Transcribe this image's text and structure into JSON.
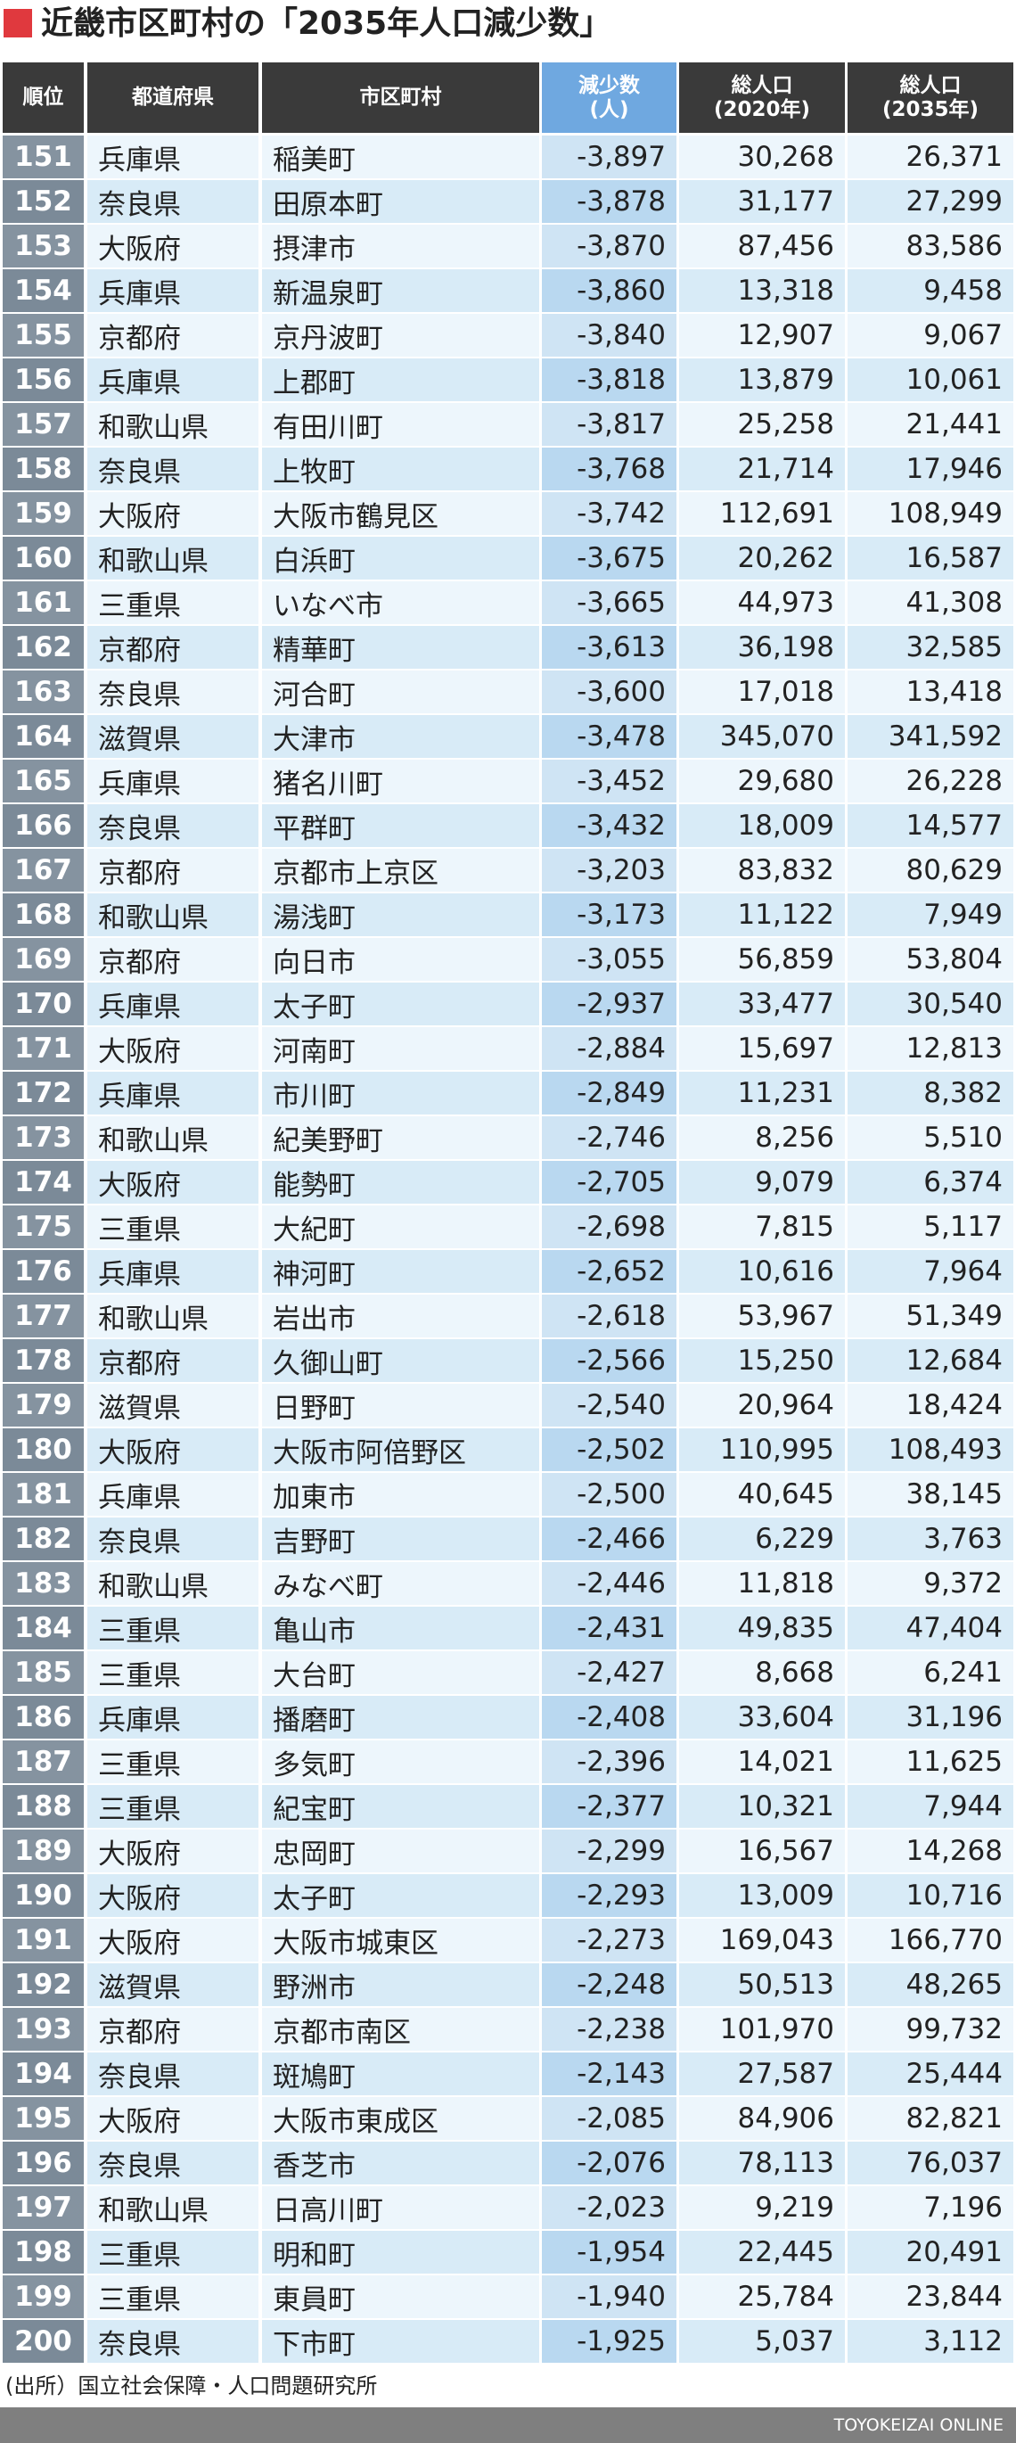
{
  "header": {
    "title": "近畿市区町村の「2035年人口減少数」"
  },
  "table": {
    "columns": [
      [
        "順位"
      ],
      [
        "都道府県"
      ],
      [
        "市区町村"
      ],
      [
        "減少数",
        "(人)"
      ],
      [
        "総人口",
        "(2020年)"
      ],
      [
        "総人口",
        "(2035年)"
      ]
    ],
    "rows": [
      [
        151,
        "兵庫県",
        "稲美町",
        "-3,897",
        "30,268",
        "26,371"
      ],
      [
        152,
        "奈良県",
        "田原本町",
        "-3,878",
        "31,177",
        "27,299"
      ],
      [
        153,
        "大阪府",
        "摂津市",
        "-3,870",
        "87,456",
        "83,586"
      ],
      [
        154,
        "兵庫県",
        "新温泉町",
        "-3,860",
        "13,318",
        "9,458"
      ],
      [
        155,
        "京都府",
        "京丹波町",
        "-3,840",
        "12,907",
        "9,067"
      ],
      [
        156,
        "兵庫県",
        "上郡町",
        "-3,818",
        "13,879",
        "10,061"
      ],
      [
        157,
        "和歌山県",
        "有田川町",
        "-3,817",
        "25,258",
        "21,441"
      ],
      [
        158,
        "奈良県",
        "上牧町",
        "-3,768",
        "21,714",
        "17,946"
      ],
      [
        159,
        "大阪府",
        "大阪市鶴見区",
        "-3,742",
        "112,691",
        "108,949"
      ],
      [
        160,
        "和歌山県",
        "白浜町",
        "-3,675",
        "20,262",
        "16,587"
      ],
      [
        161,
        "三重県",
        "いなべ市",
        "-3,665",
        "44,973",
        "41,308"
      ],
      [
        162,
        "京都府",
        "精華町",
        "-3,613",
        "36,198",
        "32,585"
      ],
      [
        163,
        "奈良県",
        "河合町",
        "-3,600",
        "17,018",
        "13,418"
      ],
      [
        164,
        "滋賀県",
        "大津市",
        "-3,478",
        "345,070",
        "341,592"
      ],
      [
        165,
        "兵庫県",
        "猪名川町",
        "-3,452",
        "29,680",
        "26,228"
      ],
      [
        166,
        "奈良県",
        "平群町",
        "-3,432",
        "18,009",
        "14,577"
      ],
      [
        167,
        "京都府",
        "京都市上京区",
        "-3,203",
        "83,832",
        "80,629"
      ],
      [
        168,
        "和歌山県",
        "湯浅町",
        "-3,173",
        "11,122",
        "7,949"
      ],
      [
        169,
        "京都府",
        "向日市",
        "-3,055",
        "56,859",
        "53,804"
      ],
      [
        170,
        "兵庫県",
        "太子町",
        "-2,937",
        "33,477",
        "30,540"
      ],
      [
        171,
        "大阪府",
        "河南町",
        "-2,884",
        "15,697",
        "12,813"
      ],
      [
        172,
        "兵庫県",
        "市川町",
        "-2,849",
        "11,231",
        "8,382"
      ],
      [
        173,
        "和歌山県",
        "紀美野町",
        "-2,746",
        "8,256",
        "5,510"
      ],
      [
        174,
        "大阪府",
        "能勢町",
        "-2,705",
        "9,079",
        "6,374"
      ],
      [
        175,
        "三重県",
        "大紀町",
        "-2,698",
        "7,815",
        "5,117"
      ],
      [
        176,
        "兵庫県",
        "神河町",
        "-2,652",
        "10,616",
        "7,964"
      ],
      [
        177,
        "和歌山県",
        "岩出市",
        "-2,618",
        "53,967",
        "51,349"
      ],
      [
        178,
        "京都府",
        "久御山町",
        "-2,566",
        "15,250",
        "12,684"
      ],
      [
        179,
        "滋賀県",
        "日野町",
        "-2,540",
        "20,964",
        "18,424"
      ],
      [
        180,
        "大阪府",
        "大阪市阿倍野区",
        "-2,502",
        "110,995",
        "108,493"
      ],
      [
        181,
        "兵庫県",
        "加東市",
        "-2,500",
        "40,645",
        "38,145"
      ],
      [
        182,
        "奈良県",
        "吉野町",
        "-2,466",
        "6,229",
        "3,763"
      ],
      [
        183,
        "和歌山県",
        "みなべ町",
        "-2,446",
        "11,818",
        "9,372"
      ],
      [
        184,
        "三重県",
        "亀山市",
        "-2,431",
        "49,835",
        "47,404"
      ],
      [
        185,
        "三重県",
        "大台町",
        "-2,427",
        "8,668",
        "6,241"
      ],
      [
        186,
        "兵庫県",
        "播磨町",
        "-2,408",
        "33,604",
        "31,196"
      ],
      [
        187,
        "三重県",
        "多気町",
        "-2,396",
        "14,021",
        "11,625"
      ],
      [
        188,
        "三重県",
        "紀宝町",
        "-2,377",
        "10,321",
        "7,944"
      ],
      [
        189,
        "大阪府",
        "忠岡町",
        "-2,299",
        "16,567",
        "14,268"
      ],
      [
        190,
        "大阪府",
        "太子町",
        "-2,293",
        "13,009",
        "10,716"
      ],
      [
        191,
        "大阪府",
        "大阪市城東区",
        "-2,273",
        "169,043",
        "166,770"
      ],
      [
        192,
        "滋賀県",
        "野洲市",
        "-2,248",
        "50,513",
        "48,265"
      ],
      [
        193,
        "京都府",
        "京都市南区",
        "-2,238",
        "101,970",
        "99,732"
      ],
      [
        194,
        "奈良県",
        "斑鳩町",
        "-2,143",
        "27,587",
        "25,444"
      ],
      [
        195,
        "大阪府",
        "大阪市東成区",
        "-2,085",
        "84,906",
        "82,821"
      ],
      [
        196,
        "奈良県",
        "香芝市",
        "-2,076",
        "78,113",
        "76,037"
      ],
      [
        197,
        "和歌山県",
        "日高川町",
        "-2,023",
        "9,219",
        "7,196"
      ],
      [
        198,
        "三重県",
        "明和町",
        "-1,954",
        "22,445",
        "20,491"
      ],
      [
        199,
        "三重県",
        "東員町",
        "-1,940",
        "25,784",
        "23,844"
      ],
      [
        200,
        "奈良県",
        "下市町",
        "-1,925",
        "5,037",
        "3,112"
      ]
    ]
  },
  "footer": {
    "source": "(出所）国立社会保障・人口問題研究所",
    "brand": "TOYOKEIZAI ONLINE"
  }
}
